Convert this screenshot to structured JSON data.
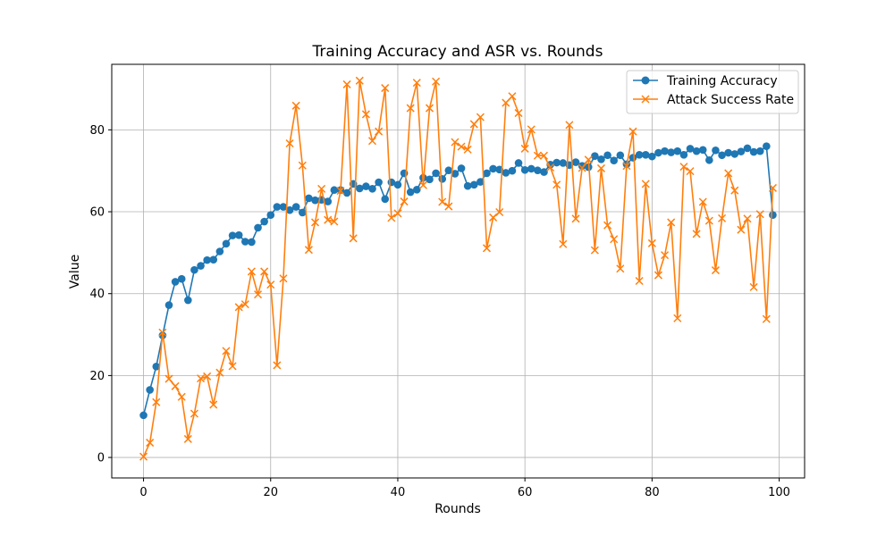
{
  "chart_data": {
    "type": "line",
    "title": "Training Accuracy and ASR vs. Rounds",
    "xlabel": "Rounds",
    "ylabel": "Value",
    "xlim": [
      -5,
      104
    ],
    "ylim": [
      -5,
      96
    ],
    "xticks": [
      0,
      20,
      40,
      60,
      80,
      100
    ],
    "yticks": [
      0,
      20,
      40,
      60,
      80
    ],
    "grid": true,
    "legend_position": "top-right",
    "x": [
      0,
      1,
      2,
      3,
      4,
      5,
      6,
      7,
      8,
      9,
      10,
      11,
      12,
      13,
      14,
      15,
      16,
      17,
      18,
      19,
      20,
      21,
      22,
      23,
      24,
      25,
      26,
      27,
      28,
      29,
      30,
      31,
      32,
      33,
      34,
      35,
      36,
      37,
      38,
      39,
      40,
      41,
      42,
      43,
      44,
      45,
      46,
      47,
      48,
      49,
      50,
      51,
      52,
      53,
      54,
      55,
      56,
      57,
      58,
      59,
      60,
      61,
      62,
      63,
      64,
      65,
      66,
      67,
      68,
      69,
      70,
      71,
      72,
      73,
      74,
      75,
      76,
      77,
      78,
      79,
      80,
      81,
      82,
      83,
      84,
      85,
      86,
      87,
      88,
      89,
      90,
      91,
      92,
      93,
      94,
      95,
      96,
      97,
      98,
      99
    ],
    "series": [
      {
        "name": "Training Accuracy",
        "color": "#1f77b4",
        "marker": "circle",
        "values": [
          10.3,
          16.5,
          22.2,
          29.8,
          37.2,
          42.9,
          43.6,
          38.4,
          45.8,
          46.8,
          48.2,
          48.3,
          50.3,
          52.2,
          54.2,
          54.3,
          52.7,
          52.6,
          56.1,
          57.6,
          59.2,
          61.2,
          61.2,
          60.4,
          61.2,
          59.8,
          63.3,
          62.8,
          62.9,
          62.5,
          65.3,
          65.3,
          64.6,
          66.8,
          65.7,
          66.2,
          65.6,
          67.2,
          63.1,
          67.2,
          66.6,
          69.4,
          64.8,
          65.4,
          68.3,
          67.9,
          69.4,
          68.0,
          70.1,
          69.3,
          70.6,
          66.3,
          66.6,
          67.3,
          69.4,
          70.5,
          70.3,
          69.5,
          70.0,
          71.9,
          70.2,
          70.5,
          70.1,
          69.7,
          71.5,
          72.0,
          71.9,
          71.4,
          72.1,
          71.2,
          70.9,
          73.6,
          72.8,
          73.8,
          72.5,
          73.8,
          71.6,
          73.2,
          73.9,
          73.9,
          73.5,
          74.4,
          74.8,
          74.5,
          74.8,
          73.9,
          75.4,
          74.8,
          75.1,
          72.6,
          75.0,
          73.8,
          74.4,
          74.1,
          74.7,
          75.5,
          74.6,
          74.8,
          76.0,
          59.2
        ]
      },
      {
        "name": "Attack Success Rate",
        "color": "#ff7f0e",
        "marker": "x",
        "values": [
          0.2,
          3.6,
          13.5,
          30.5,
          19.2,
          17.4,
          14.8,
          4.5,
          10.7,
          19.3,
          19.8,
          12.9,
          20.7,
          26.0,
          22.3,
          36.7,
          37.4,
          45.4,
          39.8,
          45.4,
          42.2,
          22.5,
          43.7,
          76.7,
          85.9,
          71.3,
          50.7,
          57.4,
          65.6,
          58.0,
          57.6,
          65.1,
          91.1,
          53.5,
          92.0,
          83.8,
          77.3,
          79.6,
          90.2,
          58.5,
          59.6,
          62.5,
          85.3,
          91.5,
          66.5,
          85.3,
          91.8,
          62.4,
          61.3,
          77.0,
          75.9,
          75.2,
          81.4,
          83.1,
          51.1,
          58.6,
          59.9,
          86.6,
          88.2,
          84.1,
          75.4,
          80.1,
          73.7,
          73.7,
          70.8,
          66.6,
          52.1,
          81.2,
          58.3,
          70.7,
          72.7,
          50.6,
          70.6,
          56.7,
          53.3,
          46.1,
          71.2,
          79.6,
          43.1,
          66.8,
          52.3,
          44.5,
          49.4,
          57.4,
          34.0,
          71.0,
          69.9,
          54.6,
          62.4,
          57.8,
          45.7,
          58.4,
          69.4,
          65.2,
          55.6,
          58.3,
          41.6,
          59.4,
          33.8,
          65.8
        ]
      }
    ]
  }
}
